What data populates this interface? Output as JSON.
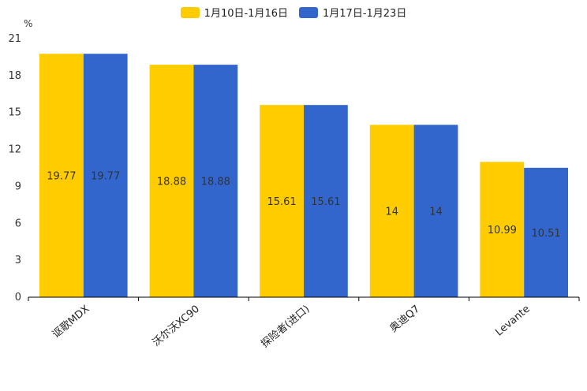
{
  "chart_data": {
    "type": "bar",
    "ylabel": "%",
    "ylim": [
      0,
      21
    ],
    "yticks": [
      0,
      3,
      6,
      9,
      12,
      15,
      18,
      21
    ],
    "categories": [
      "讴歌MDX",
      "沃尔沃XC90",
      "探险者(进口)",
      "奥迪Q7",
      "Levante"
    ],
    "series": [
      {
        "name": "1月10日-1月16日",
        "color": "#FFCC00",
        "values": [
          19.77,
          18.88,
          15.61,
          14,
          10.99
        ]
      },
      {
        "name": "1月17日-1月23日",
        "color": "#3366CC",
        "values": [
          19.77,
          18.88,
          15.61,
          14,
          10.51
        ]
      }
    ],
    "legend_position": "top-center",
    "grid": false
  }
}
